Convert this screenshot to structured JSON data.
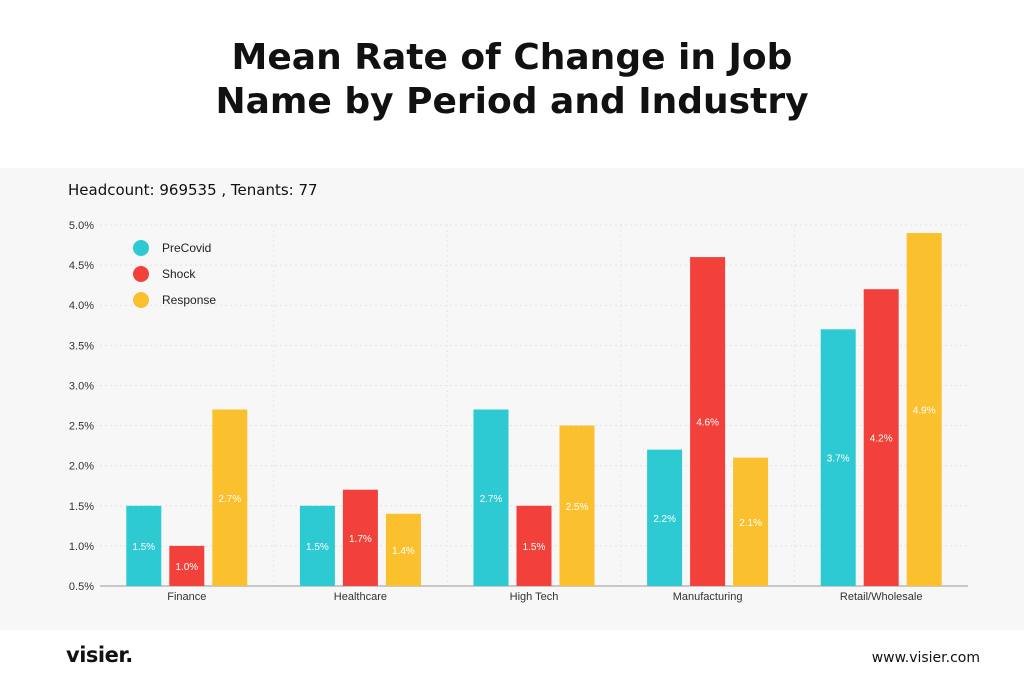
{
  "header": {
    "title_line1": "Mean Rate of Change in Job",
    "title_line2": "Name by Period and Industry"
  },
  "subtitle": "Headcount: 969535 , Tenants: 77",
  "footer": {
    "brand": "visier.",
    "site": "www.visier.com"
  },
  "colors": {
    "PreCovid": "#2ecad3",
    "Shock": "#f2413b",
    "Response": "#fbc02d"
  },
  "chart_data": {
    "type": "bar",
    "categories": [
      "Finance",
      "Healthcare",
      "High Tech",
      "Manufacturing",
      "Retail/Wholesale"
    ],
    "series": [
      {
        "name": "PreCovid",
        "values": [
          1.5,
          1.5,
          2.7,
          2.2,
          3.7
        ]
      },
      {
        "name": "Shock",
        "values": [
          1.0,
          1.7,
          1.5,
          4.6,
          4.2
        ]
      },
      {
        "name": "Response",
        "values": [
          2.7,
          1.4,
          2.5,
          2.1,
          4.9
        ]
      }
    ],
    "data_labels": [
      [
        "1.5%",
        "1.0%",
        "2.7%"
      ],
      [
        "1.5%",
        "1.7%",
        "1.4%"
      ],
      [
        "2.7%",
        "1.5%",
        "2.5%"
      ],
      [
        "2.2%",
        "4.6%",
        "2.1%"
      ],
      [
        "3.7%",
        "4.2%",
        "4.9%"
      ]
    ],
    "yticks": [
      "0.5%",
      "1.0%",
      "1.5%",
      "2.0%",
      "2.5%",
      "3.0%",
      "3.5%",
      "4.0%",
      "4.5%",
      "5.0%"
    ],
    "ylim": [
      0.5,
      5.0
    ],
    "grid": true,
    "legend_position": "top-left",
    "xlabel": "",
    "ylabel": ""
  }
}
